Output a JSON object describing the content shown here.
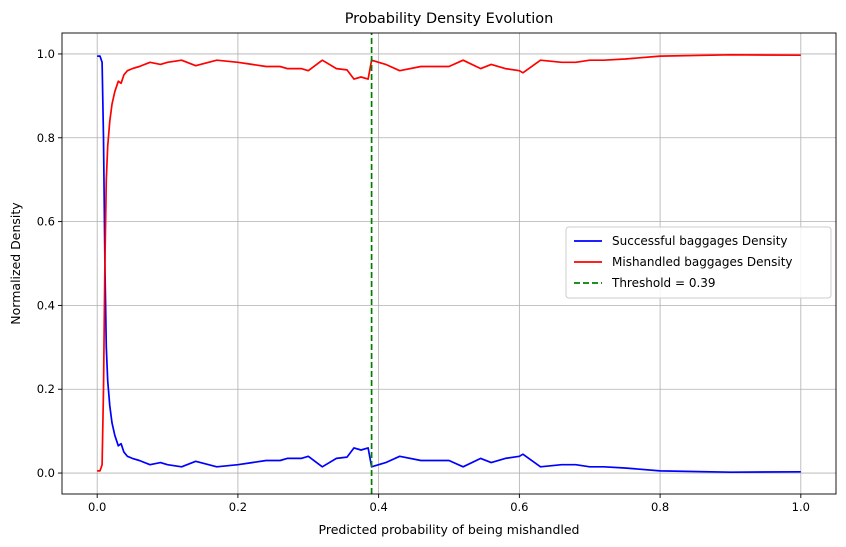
{
  "chart_data": {
    "type": "line",
    "title": "Probability Density Evolution",
    "xlabel": "Predicted probability of being mishandled",
    "ylabel": "Normalized Density",
    "xlim": [
      -0.05,
      1.05
    ],
    "ylim": [
      -0.05,
      1.05
    ],
    "xticks": [
      0.0,
      0.2,
      0.4,
      0.6,
      0.8,
      1.0
    ],
    "yticks": [
      0.0,
      0.2,
      0.4,
      0.6,
      0.8,
      1.0
    ],
    "grid": true,
    "legend_position": "center-right",
    "series": [
      {
        "name": "Successful baggages Density",
        "color": "#0000ff",
        "x": [
          0.0,
          0.004,
          0.007,
          0.009,
          0.011,
          0.013,
          0.015,
          0.018,
          0.021,
          0.025,
          0.03,
          0.034,
          0.038,
          0.043,
          0.05,
          0.06,
          0.075,
          0.09,
          0.1,
          0.12,
          0.14,
          0.17,
          0.2,
          0.22,
          0.24,
          0.26,
          0.27,
          0.29,
          0.3,
          0.32,
          0.34,
          0.355,
          0.365,
          0.375,
          0.385,
          0.39,
          0.4,
          0.41,
          0.43,
          0.46,
          0.48,
          0.5,
          0.52,
          0.545,
          0.56,
          0.58,
          0.6,
          0.605,
          0.63,
          0.66,
          0.68,
          0.7,
          0.72,
          0.75,
          0.8,
          0.9,
          1.0
        ],
        "y": [
          0.995,
          0.995,
          0.98,
          0.8,
          0.5,
          0.3,
          0.22,
          0.16,
          0.12,
          0.09,
          0.065,
          0.07,
          0.05,
          0.04,
          0.035,
          0.03,
          0.02,
          0.025,
          0.02,
          0.015,
          0.028,
          0.015,
          0.02,
          0.025,
          0.03,
          0.03,
          0.035,
          0.035,
          0.04,
          0.015,
          0.035,
          0.038,
          0.06,
          0.055,
          0.06,
          0.015,
          0.02,
          0.025,
          0.04,
          0.03,
          0.03,
          0.03,
          0.015,
          0.035,
          0.025,
          0.035,
          0.04,
          0.045,
          0.015,
          0.02,
          0.02,
          0.015,
          0.015,
          0.012,
          0.005,
          0.002,
          0.003
        ]
      },
      {
        "name": "Mishandled baggages Density",
        "color": "#ff0000",
        "x": [
          0.0,
          0.004,
          0.007,
          0.009,
          0.011,
          0.013,
          0.015,
          0.018,
          0.021,
          0.025,
          0.03,
          0.034,
          0.038,
          0.043,
          0.05,
          0.06,
          0.075,
          0.09,
          0.1,
          0.12,
          0.14,
          0.17,
          0.2,
          0.22,
          0.24,
          0.26,
          0.27,
          0.29,
          0.3,
          0.32,
          0.34,
          0.355,
          0.365,
          0.375,
          0.385,
          0.39,
          0.4,
          0.41,
          0.43,
          0.46,
          0.48,
          0.5,
          0.52,
          0.545,
          0.56,
          0.58,
          0.6,
          0.605,
          0.63,
          0.66,
          0.68,
          0.7,
          0.72,
          0.75,
          0.8,
          0.9,
          1.0
        ],
        "y": [
          0.005,
          0.005,
          0.02,
          0.2,
          0.5,
          0.7,
          0.78,
          0.84,
          0.88,
          0.91,
          0.935,
          0.93,
          0.95,
          0.96,
          0.965,
          0.97,
          0.98,
          0.975,
          0.98,
          0.985,
          0.972,
          0.985,
          0.98,
          0.975,
          0.97,
          0.97,
          0.965,
          0.965,
          0.96,
          0.985,
          0.965,
          0.962,
          0.94,
          0.945,
          0.94,
          0.985,
          0.98,
          0.975,
          0.96,
          0.97,
          0.97,
          0.97,
          0.985,
          0.965,
          0.975,
          0.965,
          0.96,
          0.955,
          0.985,
          0.98,
          0.98,
          0.985,
          0.985,
          0.988,
          0.995,
          0.998,
          0.997
        ]
      },
      {
        "name": "Threshold = 0.39",
        "color": "#008000",
        "style": "dashed",
        "x": [
          0.39,
          0.39
        ],
        "y": [
          -0.05,
          1.05
        ]
      }
    ]
  }
}
